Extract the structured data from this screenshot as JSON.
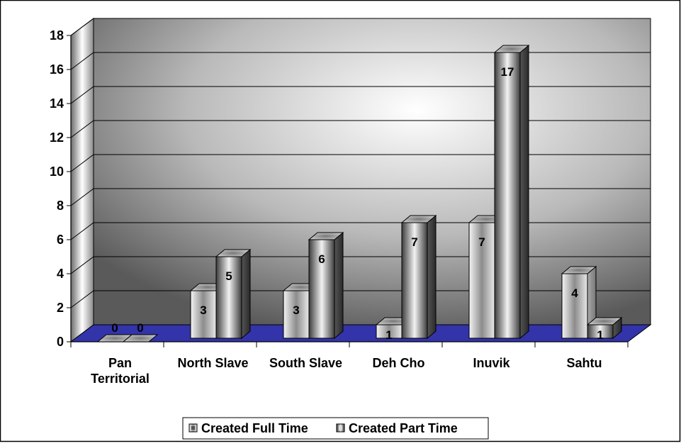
{
  "chart_data": {
    "type": "bar",
    "title": "",
    "xlabel": "",
    "ylabel": "",
    "categories": [
      "Pan\nTerritorial",
      "North Slave",
      "South Slave",
      "Deh Cho",
      "Inuvik",
      "Sahtu"
    ],
    "series": [
      {
        "name": "Created Full Time",
        "values": [
          0,
          3,
          3,
          1,
          7,
          4
        ]
      },
      {
        "name": "Created Part Time",
        "values": [
          0,
          5,
          6,
          7,
          17,
          1
        ]
      }
    ],
    "ylim": [
      0,
      18
    ],
    "yticks": [
      0,
      2,
      4,
      6,
      8,
      10,
      12,
      14,
      16,
      18
    ],
    "grid": true,
    "legend": "bottom",
    "style_3d": true,
    "colors": {
      "wall_dark": "#555555",
      "wall_light": "#ffffff",
      "floor": "#3333aa",
      "full_time_face": "#cfcfcf",
      "part_time_face": "#3a3a3a"
    }
  }
}
